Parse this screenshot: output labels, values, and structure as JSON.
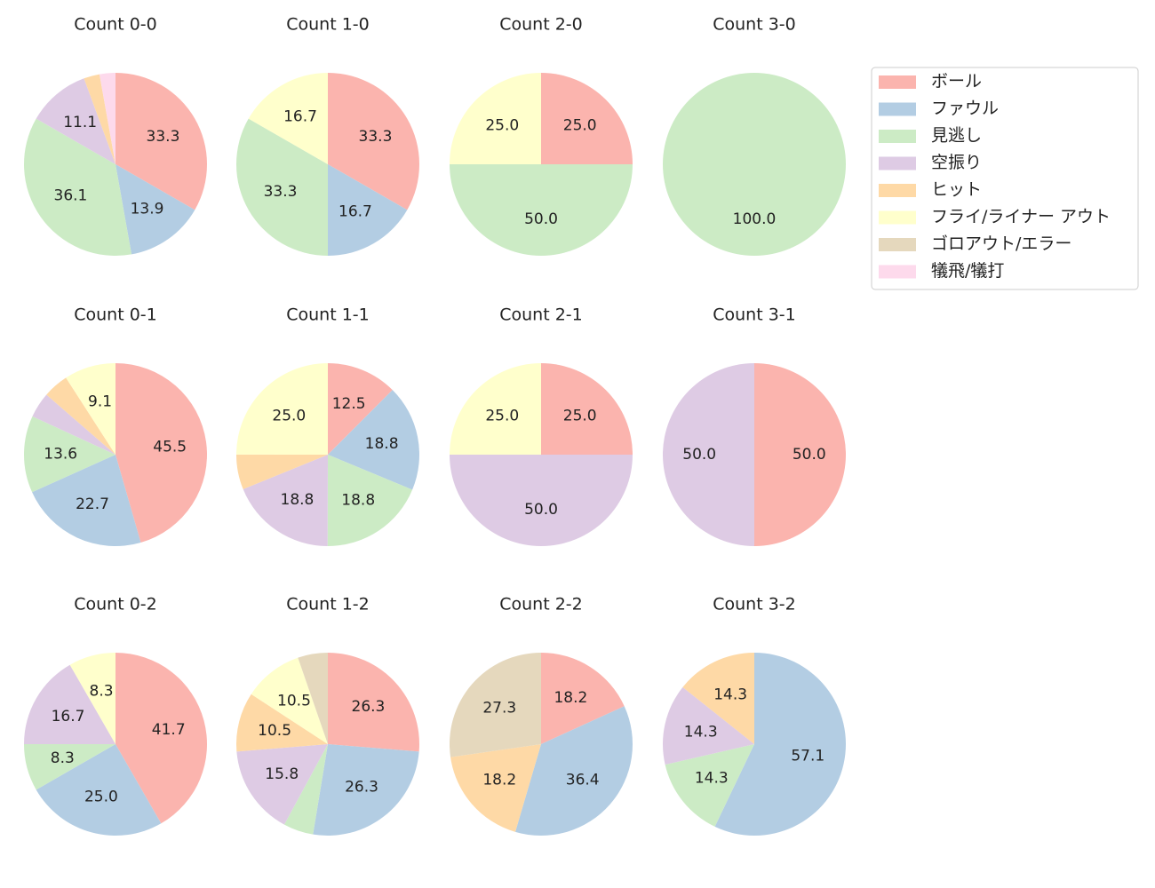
{
  "chart_data": [
    {
      "type": "pie",
      "title": "Count 0-0",
      "values": [
        33.3,
        13.9,
        36.1,
        11.1,
        2.8,
        0,
        0,
        2.8
      ],
      "value_labels": [
        "33.3",
        "13.9",
        "36.1",
        "11.1",
        null,
        null,
        null,
        null
      ]
    },
    {
      "type": "pie",
      "title": "Count 1-0",
      "values": [
        33.3,
        16.7,
        33.3,
        0,
        0,
        16.7,
        0,
        0
      ],
      "value_labels": [
        "33.3",
        "16.7",
        "33.3",
        null,
        null,
        "16.7",
        null,
        null
      ]
    },
    {
      "type": "pie",
      "title": "Count 2-0",
      "values": [
        25.0,
        0,
        50.0,
        0,
        0,
        25.0,
        0,
        0
      ],
      "value_labels": [
        "25.0",
        null,
        "50.0",
        null,
        null,
        "25.0",
        null,
        null
      ]
    },
    {
      "type": "pie",
      "title": "Count 3-0",
      "values": [
        0,
        0,
        100.0,
        0,
        0,
        0,
        0,
        0
      ],
      "value_labels": [
        null,
        null,
        "100.0",
        null,
        null,
        null,
        null,
        null
      ]
    },
    {
      "type": "pie",
      "title": "Count 0-1",
      "values": [
        45.5,
        22.7,
        13.6,
        4.5,
        4.5,
        9.1,
        0,
        0
      ],
      "value_labels": [
        "45.5",
        "22.7",
        "13.6",
        null,
        null,
        "9.1",
        null,
        null
      ]
    },
    {
      "type": "pie",
      "title": "Count 1-1",
      "values": [
        12.5,
        18.8,
        18.8,
        18.8,
        6.2,
        25.0,
        0,
        0
      ],
      "value_labels": [
        "12.5",
        "18.8",
        "18.8",
        "18.8",
        null,
        "25.0",
        null,
        null
      ]
    },
    {
      "type": "pie",
      "title": "Count 2-1",
      "values": [
        25.0,
        0,
        0,
        50.0,
        0,
        25.0,
        0,
        0
      ],
      "value_labels": [
        "25.0",
        null,
        null,
        "50.0",
        null,
        "25.0",
        null,
        null
      ]
    },
    {
      "type": "pie",
      "title": "Count 3-1",
      "values": [
        50.0,
        0,
        0,
        50.0,
        0,
        0,
        0,
        0
      ],
      "value_labels": [
        "50.0",
        null,
        null,
        "50.0",
        null,
        null,
        null,
        null
      ]
    },
    {
      "type": "pie",
      "title": "Count 0-2",
      "values": [
        41.7,
        25.0,
        8.3,
        16.7,
        0,
        8.3,
        0,
        0
      ],
      "value_labels": [
        "41.7",
        "25.0",
        "8.3",
        "16.7",
        null,
        "8.3",
        null,
        null
      ]
    },
    {
      "type": "pie",
      "title": "Count 1-2",
      "values": [
        26.3,
        26.3,
        5.3,
        15.8,
        10.5,
        10.5,
        5.3,
        0
      ],
      "value_labels": [
        "26.3",
        "26.3",
        null,
        "15.8",
        "10.5",
        "10.5",
        null,
        null
      ]
    },
    {
      "type": "pie",
      "title": "Count 2-2",
      "values": [
        18.2,
        36.4,
        0,
        0,
        18.2,
        0,
        27.3,
        0
      ],
      "value_labels": [
        "18.2",
        "36.4",
        null,
        null,
        "18.2",
        null,
        "27.3",
        null
      ]
    },
    {
      "type": "pie",
      "title": "Count 3-2",
      "values": [
        0,
        57.1,
        14.3,
        14.3,
        14.3,
        0,
        0,
        0
      ],
      "value_labels": [
        null,
        "57.1",
        "14.3",
        "14.3",
        "14.3",
        null,
        null,
        null
      ]
    }
  ],
  "legend": {
    "loc": "upper right",
    "labels": [
      "ボール",
      "ファウル",
      "見逃し",
      "空振り",
      "ヒット",
      "フライ/ライナー アウト",
      "ゴロアウト/エラー",
      "犠飛/犠打"
    ],
    "colors": [
      "#fbb4ae",
      "#b3cde3",
      "#ccebc5",
      "#decbe4",
      "#fed9a6",
      "#ffffcc",
      "#e5d8bd",
      "#fddaec"
    ]
  }
}
